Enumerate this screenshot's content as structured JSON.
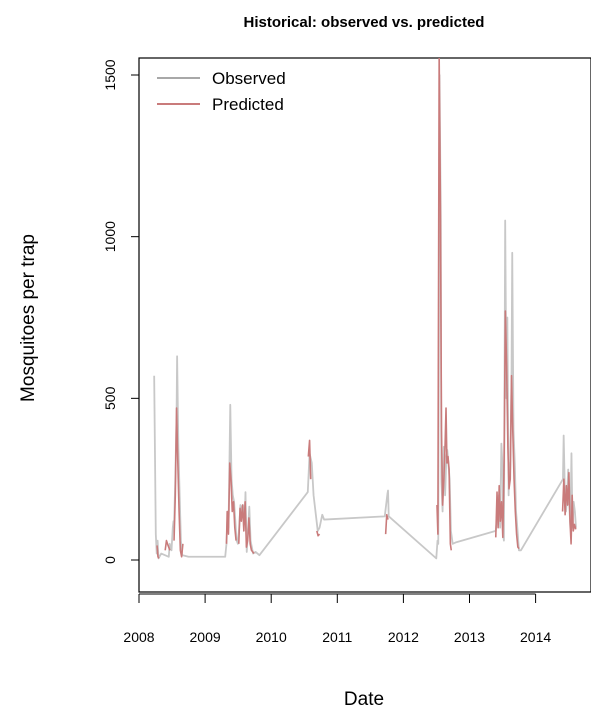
{
  "chart_data": {
    "type": "line",
    "title": "Historical: observed vs. predicted",
    "xlabel": "Date",
    "ylabel": "Mosquitoes per trap",
    "xlim": [
      "2008-01-01",
      "2014-12-31"
    ],
    "ylim": [
      0,
      1500
    ],
    "x_ticks": [
      "2008",
      "2009",
      "2010",
      "2011",
      "2012",
      "2013",
      "2014"
    ],
    "y_ticks": [
      0,
      500,
      1000,
      1500
    ],
    "grid": false,
    "legend_position": "top-left",
    "series": [
      {
        "name": "Observed",
        "color": "#c8c8c8",
        "points": [
          [
            "2008-03-25",
            570
          ],
          [
            "2008-04-03",
            80
          ],
          [
            "2008-04-08",
            20
          ],
          [
            "2008-04-13",
            60
          ],
          [
            "2008-04-18",
            5
          ],
          [
            "2008-05-03",
            20
          ],
          [
            "2008-06-14",
            10
          ],
          [
            "2008-06-19",
            50
          ],
          [
            "2008-06-29",
            30
          ],
          [
            "2008-07-06",
            100
          ],
          [
            "2008-07-10",
            120
          ],
          [
            "2008-07-13",
            100
          ],
          [
            "2008-07-20",
            250
          ],
          [
            "2008-07-27",
            450
          ],
          [
            "2008-07-30",
            630
          ],
          [
            "2008-08-06",
            350
          ],
          [
            "2008-08-13",
            200
          ],
          [
            "2008-08-20",
            60
          ],
          [
            "2008-08-27",
            15
          ],
          [
            "2008-10-01",
            10
          ],
          [
            "2009-04-22",
            10
          ],
          [
            "2009-04-29",
            50
          ],
          [
            "2009-05-06",
            150
          ],
          [
            "2009-05-10",
            100
          ],
          [
            "2009-05-13",
            200
          ],
          [
            "2009-05-20",
            480
          ],
          [
            "2009-05-27",
            250
          ],
          [
            "2009-06-03",
            200
          ],
          [
            "2009-06-10",
            180
          ],
          [
            "2009-06-24",
            60
          ],
          [
            "2009-07-01",
            50
          ],
          [
            "2009-07-08",
            100
          ],
          [
            "2009-07-15",
            170
          ],
          [
            "2009-07-22",
            150
          ],
          [
            "2009-07-29",
            170
          ],
          [
            "2009-08-05",
            120
          ],
          [
            "2009-08-09",
            150
          ],
          [
            "2009-08-12",
            210
          ],
          [
            "2009-08-19",
            25
          ],
          [
            "2009-08-26",
            90
          ],
          [
            "2009-09-02",
            165
          ],
          [
            "2009-09-09",
            60
          ],
          [
            "2009-09-23",
            20
          ],
          [
            "2009-10-07",
            25
          ],
          [
            "2009-10-28",
            15
          ],
          [
            "2010-07-22",
            210
          ],
          [
            "2010-08-01",
            330
          ],
          [
            "2010-08-13",
            300
          ],
          [
            "2010-08-23",
            200
          ],
          [
            "2010-09-15",
            90
          ],
          [
            "2010-09-25",
            100
          ],
          [
            "2010-10-10",
            140
          ],
          [
            "2010-10-20",
            125
          ],
          [
            "2011-09-20",
            135
          ],
          [
            "2011-10-05",
            205
          ],
          [
            "2011-10-08",
            215
          ],
          [
            "2011-10-12",
            135
          ],
          [
            "2012-07-01",
            5
          ],
          [
            "2012-07-08",
            60
          ],
          [
            "2012-07-12",
            50
          ],
          [
            "2012-07-19",
            1500
          ],
          [
            "2012-07-26",
            1050
          ],
          [
            "2012-07-29",
            250
          ],
          [
            "2012-08-05",
            150
          ],
          [
            "2012-08-12",
            350
          ],
          [
            "2012-08-19",
            200
          ],
          [
            "2012-08-26",
            320
          ],
          [
            "2012-08-31",
            340
          ],
          [
            "2012-09-06",
            300
          ],
          [
            "2012-09-13",
            250
          ],
          [
            "2012-09-20",
            90
          ],
          [
            "2012-09-30",
            50
          ],
          [
            "2012-10-20",
            55
          ],
          [
            "2013-05-26",
            90
          ],
          [
            "2013-06-05",
            150
          ],
          [
            "2013-06-12",
            200
          ],
          [
            "2013-06-19",
            100
          ],
          [
            "2013-06-26",
            360
          ],
          [
            "2013-07-03",
            280
          ],
          [
            "2013-07-06",
            80
          ],
          [
            "2013-07-10",
            60
          ],
          [
            "2013-07-17",
            1050
          ],
          [
            "2013-07-24",
            500
          ],
          [
            "2013-07-29",
            750
          ],
          [
            "2013-08-05",
            200
          ],
          [
            "2013-08-08",
            300
          ],
          [
            "2013-08-14",
            280
          ],
          [
            "2013-08-21",
            560
          ],
          [
            "2013-08-25",
            950
          ],
          [
            "2013-09-01",
            400
          ],
          [
            "2013-09-08",
            300
          ],
          [
            "2013-09-15",
            150
          ],
          [
            "2013-09-22",
            100
          ],
          [
            "2013-10-01",
            30
          ],
          [
            "2013-10-12",
            30
          ],
          [
            "2014-06-01",
            250
          ],
          [
            "2014-06-05",
            385
          ],
          [
            "2014-06-12",
            200
          ],
          [
            "2014-06-18",
            150
          ],
          [
            "2014-06-24",
            200
          ],
          [
            "2014-06-30",
            280
          ],
          [
            "2014-07-06",
            170
          ],
          [
            "2014-07-12",
            100
          ],
          [
            "2014-07-18",
            330
          ],
          [
            "2014-07-24",
            100
          ],
          [
            "2014-07-30",
            180
          ],
          [
            "2014-08-06",
            150
          ],
          [
            "2014-08-12",
            100
          ]
        ]
      },
      {
        "name": "Predicted",
        "color": "#c97b7b",
        "segments": [
          [
            [
              "2008-04-10",
              45
            ],
            [
              "2008-04-15",
              10
            ],
            [
              "2008-04-20",
              5
            ]
          ],
          [
            [
              "2008-05-25",
              30
            ],
            [
              "2008-06-01",
              60
            ],
            [
              "2008-06-10",
              45
            ],
            [
              "2008-06-20",
              30
            ]
          ],
          [
            [
              "2008-07-13",
              60
            ],
            [
              "2008-07-20",
              200
            ],
            [
              "2008-07-27",
              470
            ],
            [
              "2008-08-03",
              300
            ],
            [
              "2008-08-10",
              150
            ],
            [
              "2008-08-17",
              30
            ],
            [
              "2008-08-24",
              10
            ],
            [
              "2008-08-31",
              50
            ]
          ],
          [
            [
              "2009-04-29",
              50
            ],
            [
              "2009-05-03",
              150
            ],
            [
              "2009-05-10",
              80
            ],
            [
              "2009-05-17",
              300
            ],
            [
              "2009-05-24",
              250
            ],
            [
              "2009-05-31",
              150
            ],
            [
              "2009-06-07",
              180
            ],
            [
              "2009-06-14",
              100
            ],
            [
              "2009-06-21",
              60
            ]
          ],
          [
            [
              "2009-07-06",
              50
            ],
            [
              "2009-07-13",
              160
            ],
            [
              "2009-07-20",
              120
            ],
            [
              "2009-07-27",
              170
            ],
            [
              "2009-08-03",
              90
            ],
            [
              "2009-08-10",
              180
            ],
            [
              "2009-08-17",
              40
            ],
            [
              "2009-08-24",
              60
            ],
            [
              "2009-08-31",
              130
            ],
            [
              "2009-09-07",
              50
            ],
            [
              "2009-09-14",
              30
            ],
            [
              "2009-09-28",
              20
            ]
          ],
          [
            [
              "2010-07-25",
              320
            ],
            [
              "2010-08-01",
              370
            ],
            [
              "2010-08-07",
              250
            ]
          ],
          [
            [
              "2010-09-10",
              90
            ],
            [
              "2010-09-17",
              75
            ],
            [
              "2010-09-25",
              80
            ]
          ],
          [
            [
              "2011-09-25",
              80
            ],
            [
              "2011-10-01",
              140
            ],
            [
              "2011-10-08",
              125
            ]
          ],
          [
            [
              "2012-07-05",
              170
            ],
            [
              "2012-07-10",
              80
            ],
            [
              "2012-07-17",
              1560
            ],
            [
              "2012-07-24",
              1100
            ],
            [
              "2012-07-30",
              400
            ],
            [
              "2012-08-05",
              170
            ],
            [
              "2012-08-12",
              250
            ],
            [
              "2012-08-19",
              360
            ],
            [
              "2012-08-24",
              470
            ],
            [
              "2012-08-29",
              300
            ],
            [
              "2012-09-04",
              320
            ],
            [
              "2012-09-10",
              280
            ],
            [
              "2012-09-17",
              50
            ],
            [
              "2012-09-22",
              30
            ]
          ],
          [
            [
              "2013-05-26",
              70
            ],
            [
              "2013-06-02",
              210
            ],
            [
              "2013-06-08",
              100
            ],
            [
              "2013-06-14",
              230
            ],
            [
              "2013-06-20",
              120
            ],
            [
              "2013-06-27",
              180
            ],
            [
              "2013-07-04",
              70
            ],
            [
              "2013-07-11",
              300
            ],
            [
              "2013-07-18",
              770
            ],
            [
              "2013-07-25",
              600
            ],
            [
              "2013-08-01",
              350
            ],
            [
              "2013-08-07",
              220
            ],
            [
              "2013-08-14",
              250
            ],
            [
              "2013-08-21",
              570
            ],
            [
              "2013-08-28",
              400
            ],
            [
              "2013-09-04",
              250
            ],
            [
              "2013-09-11",
              150
            ],
            [
              "2013-09-18",
              80
            ],
            [
              "2013-09-25",
              40
            ],
            [
              "2013-10-02",
              35
            ]
          ],
          [
            [
              "2014-05-30",
              150
            ],
            [
              "2014-06-06",
              250
            ],
            [
              "2014-06-13",
              140
            ],
            [
              "2014-06-20",
              230
            ],
            [
              "2014-06-27",
              170
            ],
            [
              "2014-07-04",
              270
            ],
            [
              "2014-07-10",
              120
            ],
            [
              "2014-07-16",
              50
            ],
            [
              "2014-07-22",
              200
            ],
            [
              "2014-07-28",
              90
            ],
            [
              "2014-08-04",
              110
            ],
            [
              "2014-08-11",
              95
            ]
          ]
        ]
      }
    ]
  }
}
